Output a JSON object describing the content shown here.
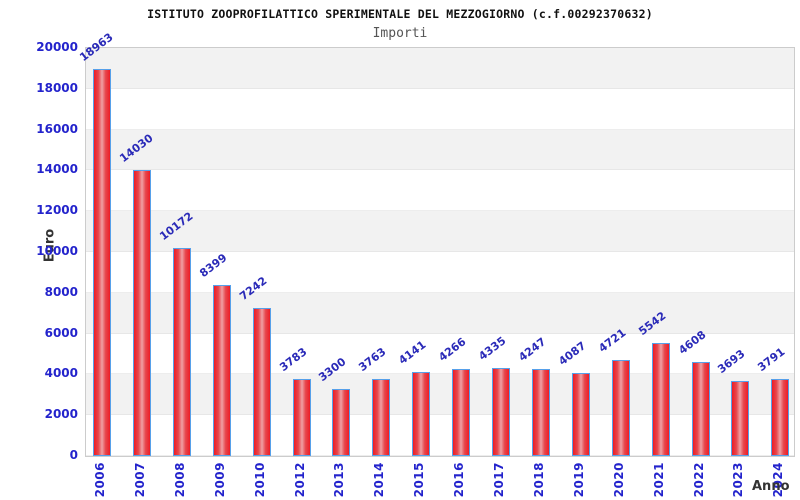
{
  "header": {
    "title": "ISTITUTO ZOOPROFILATTICO SPERIMENTALE DEL MEZZOGIORNO (c.f.00292370632)",
    "subtitle": "Importi"
  },
  "chart_data": {
    "type": "bar",
    "title": "ISTITUTO ZOOPROFILATTICO SPERIMENTALE DEL MEZZOGIORNO (c.f.00292370632)",
    "subtitle": "Importi",
    "xlabel": "Anno",
    "ylabel": "Euro",
    "categories": [
      "2006",
      "2007",
      "2008",
      "2009",
      "2010",
      "2012",
      "2013",
      "2014",
      "2015",
      "2016",
      "2017",
      "2018",
      "2019",
      "2020",
      "2021",
      "2022",
      "2023",
      "2024"
    ],
    "values": [
      18963,
      14030,
      10172,
      8399,
      7242,
      3783,
      3300,
      3763,
      4141,
      4266,
      4335,
      4247,
      4087,
      4721,
      5542,
      4608,
      3693,
      3791
    ],
    "ylim": [
      0,
      20000
    ],
    "ytick_step": 2000,
    "legend": "none",
    "grid": "alternating-horizontal-bands",
    "colors": {
      "tick_label_blue": "#2323cc",
      "value_label_blue": "#2a2ab8",
      "bar_edge_red": "#ee1c25",
      "bar_center_pink": "#f0a0a4",
      "bar_border_blue": "#56a0ea",
      "band_gray": "#f2f2f2",
      "band_white": "#ffffff",
      "plot_border": "#cccccc",
      "title_color": "#111111",
      "subtitle_color": "#555555",
      "axis_title_color": "#333333"
    }
  }
}
